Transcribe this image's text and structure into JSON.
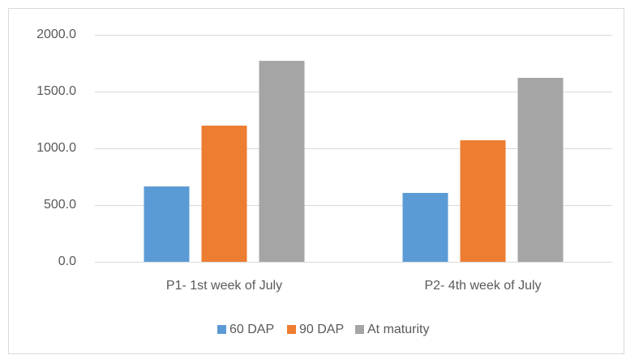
{
  "chart_data": {
    "type": "bar",
    "categories": [
      "P1- 1st week of July",
      "P2- 4th week of July"
    ],
    "series": [
      {
        "name": "60 DAP",
        "color": "#5b9bd5",
        "values": [
          664,
          607
        ]
      },
      {
        "name": "90 DAP",
        "color": "#ed7d31",
        "values": [
          1200,
          1071
        ]
      },
      {
        "name": "At maturity",
        "color": "#a5a5a5",
        "values": [
          1771,
          1621
        ]
      }
    ],
    "ylim": [
      0,
      2000
    ],
    "yticks": [
      {
        "value": 0,
        "label": "0.0"
      },
      {
        "value": 500,
        "label": "500.0"
      },
      {
        "value": 1000,
        "label": "1000.0"
      },
      {
        "value": 1500,
        "label": "1500.0"
      },
      {
        "value": 2000,
        "label": "2000.0"
      }
    ],
    "grid": true,
    "legend": "bottom"
  }
}
